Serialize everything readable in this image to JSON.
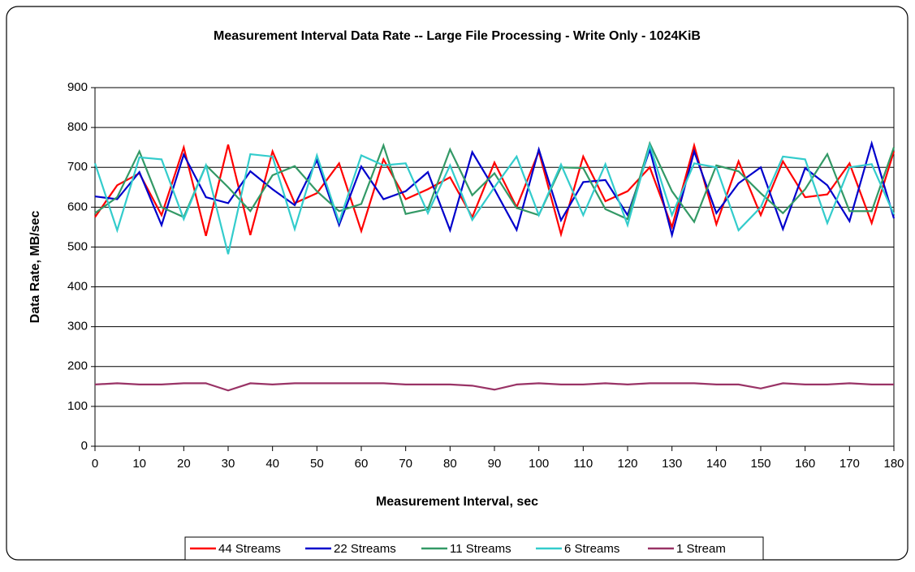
{
  "chart_data": {
    "type": "line",
    "title": "Measurement Interval Data Rate -- Large File Processing - Write Only - 1024KiB",
    "xlabel": "Measurement Interval, sec",
    "ylabel": "Data Rate, MB/sec",
    "x": [
      0,
      5,
      10,
      15,
      20,
      25,
      30,
      35,
      40,
      45,
      50,
      55,
      60,
      65,
      70,
      75,
      80,
      85,
      90,
      95,
      100,
      105,
      110,
      115,
      120,
      125,
      130,
      135,
      140,
      145,
      150,
      155,
      160,
      165,
      170,
      175,
      180
    ],
    "series": [
      {
        "name": "44 Streams",
        "color": "#ff0000",
        "values": [
          575,
          655,
          685,
          580,
          750,
          528,
          757,
          530,
          740,
          610,
          635,
          710,
          540,
          720,
          620,
          645,
          675,
          575,
          712,
          600,
          740,
          532,
          727,
          615,
          640,
          700,
          550,
          755,
          557,
          715,
          580,
          715,
          625,
          632,
          710,
          560,
          740
        ]
      },
      {
        "name": "22 Streams",
        "color": "#0000cc",
        "values": [
          627,
          620,
          688,
          555,
          732,
          625,
          610,
          690,
          645,
          605,
          718,
          555,
          702,
          620,
          640,
          688,
          542,
          738,
          645,
          543,
          745,
          567,
          663,
          668,
          580,
          745,
          530,
          740,
          585,
          660,
          700,
          545,
          698,
          655,
          565,
          760,
          572
        ]
      },
      {
        "name": "11 Streams",
        "color": "#339966",
        "values": [
          585,
          625,
          740,
          600,
          575,
          705,
          650,
          590,
          680,
          703,
          640,
          590,
          608,
          755,
          583,
          595,
          745,
          630,
          685,
          598,
          580,
          700,
          698,
          595,
          570,
          760,
          640,
          563,
          705,
          690,
          635,
          585,
          645,
          733,
          590,
          590,
          750
        ]
      },
      {
        "name": "6 Streams",
        "color": "#33cccc",
        "values": [
          710,
          542,
          725,
          720,
          570,
          705,
          482,
          733,
          727,
          545,
          730,
          563,
          730,
          705,
          710,
          585,
          705,
          568,
          650,
          727,
          580,
          707,
          580,
          708,
          555,
          755,
          580,
          710,
          700,
          542,
          600,
          727,
          720,
          560,
          700,
          708,
          582
        ]
      },
      {
        "name": "1 Stream",
        "color": "#993366",
        "values": [
          155,
          158,
          155,
          155,
          158,
          158,
          140,
          158,
          155,
          158,
          158,
          158,
          158,
          158,
          155,
          155,
          155,
          152,
          142,
          155,
          158,
          155,
          155,
          158,
          155,
          158,
          158,
          158,
          155,
          155,
          145,
          158,
          155,
          155,
          158,
          155,
          155
        ]
      }
    ],
    "xlim": [
      0,
      180
    ],
    "xticks": [
      0,
      10,
      20,
      30,
      40,
      50,
      60,
      70,
      80,
      90,
      100,
      110,
      120,
      130,
      140,
      150,
      160,
      170,
      180
    ],
    "ylim": [
      0,
      900
    ],
    "yticks": [
      0,
      100,
      200,
      300,
      400,
      500,
      600,
      700,
      800,
      900
    ],
    "grid": true,
    "legend": "bottom"
  }
}
